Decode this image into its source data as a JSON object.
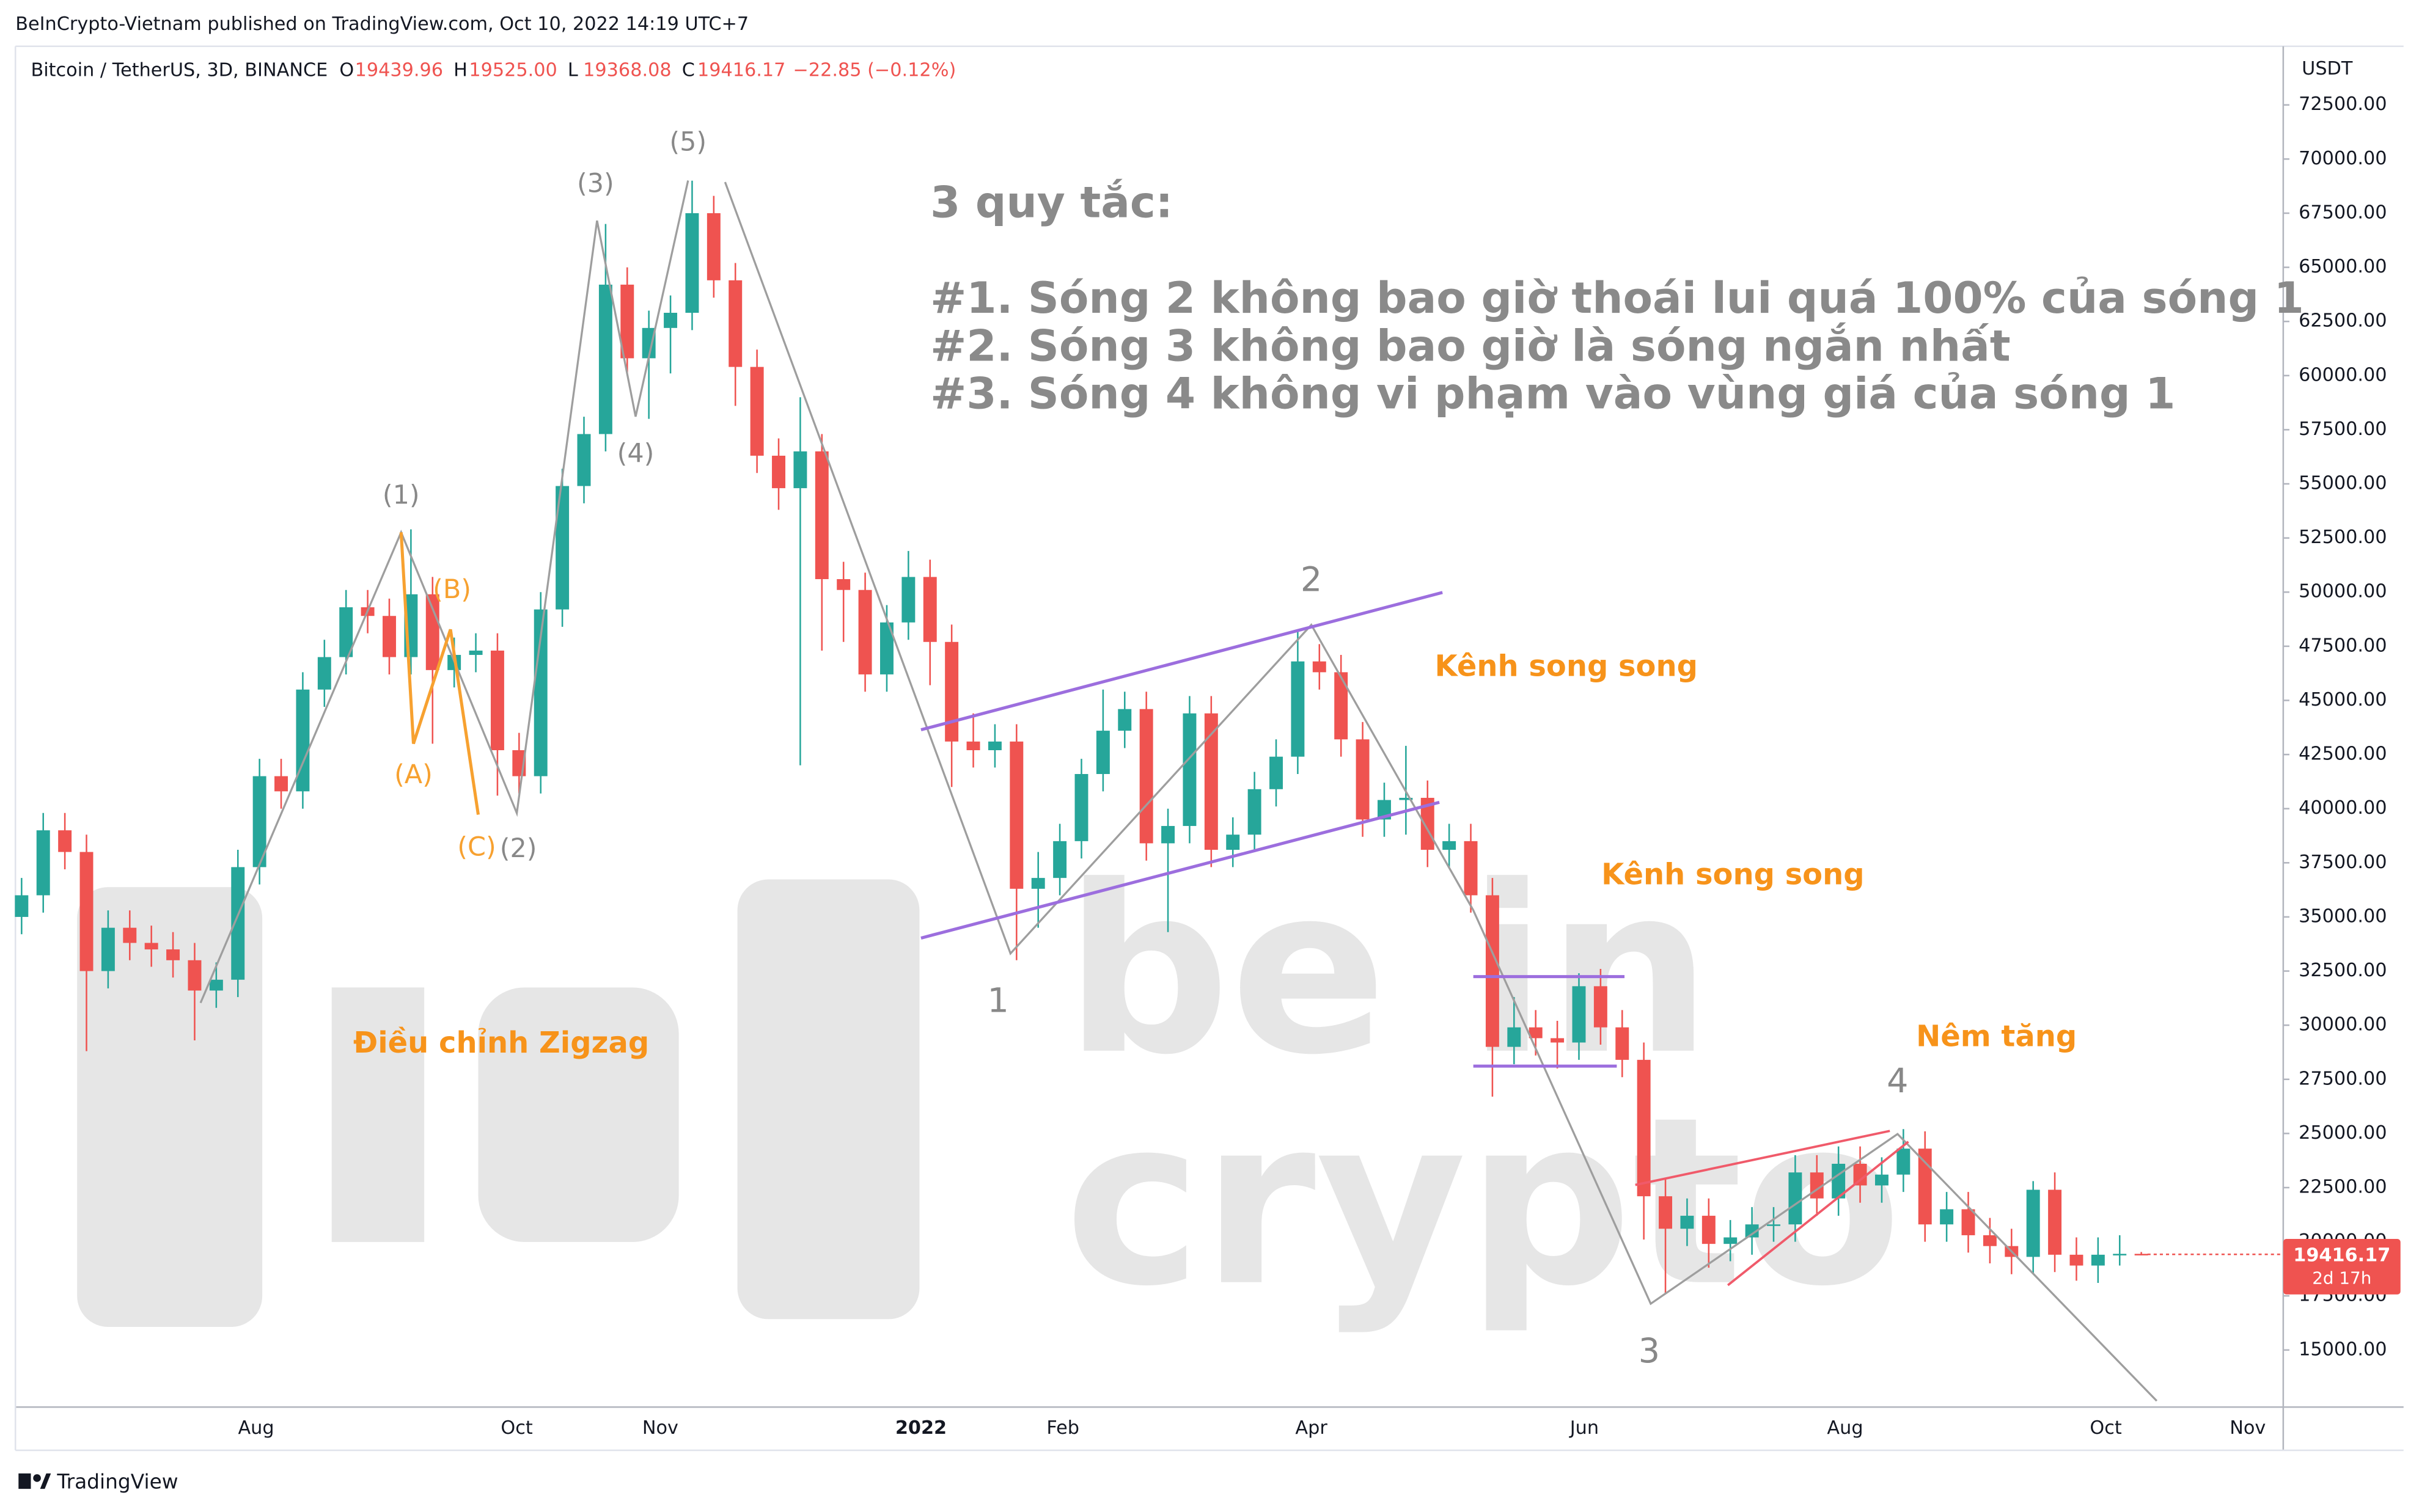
{
  "header": {
    "published": "BeInCrypto-Vietnam published on TradingView.com, Oct 10, 2022 14:19 UTC+7",
    "symbol": "Bitcoin / TetherUS, 3D, BINANCE",
    "ohlc": [
      {
        "key": "O",
        "value": "19439.96"
      },
      {
        "key": "H",
        "value": "19525.00"
      },
      {
        "key": "L",
        "value": "19368.08"
      },
      {
        "key": "C",
        "value": "19416.17"
      }
    ],
    "change": "−22.85 (−0.12%)",
    "currency": "USDT",
    "countdown": "2d 17h",
    "footer": "TradingView"
  },
  "annotations": {
    "rules_title": "3 quy tắc:",
    "rules": [
      "#1. Sóng 2 không bao giờ thoái lui quá 100% của sóng 1",
      "#2. Sóng 3 không bao giờ là sóng ngắn nhất",
      "#3. Sóng 4 không vi phạm vào vùng giá của sóng 1"
    ],
    "channel_1": "Kênh song song",
    "channel_2": "Kênh song song",
    "wedge": "Nêm tăng",
    "zigzag": "Điều chỉnh Zigzag",
    "waves": [
      "(1)",
      "(2)",
      "(3)",
      "(4)",
      "(5)",
      "(A)",
      "(B)",
      "(C)",
      "1",
      "2",
      "3",
      "4"
    ],
    "watermark": [
      "be in",
      "crypto"
    ]
  },
  "chart_data": {
    "type": "candlestick",
    "up_color": "#26a69a",
    "down_color": "#ef5350",
    "xticks": [
      "Aug",
      "Oct",
      "Nov",
      "2022",
      "Feb",
      "Apr",
      "Jun",
      "Aug",
      "Oct",
      "Nov"
    ],
    "open": [
      35000,
      36000,
      39000,
      38000,
      32500,
      34500,
      33800,
      33500,
      33000,
      31600,
      32100,
      37300,
      41500,
      40800,
      45500,
      47000,
      49300,
      48900,
      47000,
      49900,
      46400,
      47100,
      47300,
      42700,
      41500,
      49200,
      54900,
      57300,
      64200,
      60800,
      62200,
      62900,
      67500,
      64400,
      60400,
      56300,
      54800,
      56500,
      50600,
      50100,
      46200,
      48600,
      50700,
      47700,
      43100,
      42700,
      43100,
      36300,
      36800,
      38500,
      41600,
      43600,
      44600,
      38400,
      39200,
      44400,
      38100,
      38800,
      40900,
      42400,
      46800,
      46300,
      43200,
      39500,
      40400,
      40500,
      38100,
      38500,
      36000,
      29000,
      29900,
      29400,
      29200,
      31800,
      29900,
      28400,
      22100,
      20600,
      21200,
      19900,
      20200,
      20800,
      20800,
      23200,
      22000,
      23600,
      22600,
      23100,
      24300,
      20800,
      21500,
      20300,
      19800,
      19300,
      22400,
      19400,
      18900,
      19400,
      19439.96
    ],
    "high": [
      36800,
      39800,
      39800,
      38800,
      35300,
      35300,
      34600,
      34300,
      33800,
      32900,
      38100,
      42300,
      42300,
      46300,
      47800,
      50100,
      50100,
      49700,
      52900,
      50700,
      47900,
      48100,
      48100,
      43500,
      50000,
      55700,
      58100,
      67000,
      65000,
      63000,
      63700,
      69000,
      68300,
      65200,
      61200,
      57100,
      59000,
      57300,
      51400,
      50900,
      49400,
      51900,
      51500,
      48500,
      44400,
      43900,
      43900,
      38000,
      39300,
      42300,
      45500,
      45400,
      45400,
      40000,
      45200,
      45200,
      39600,
      41700,
      43200,
      48200,
      47600,
      47100,
      44000,
      41200,
      42900,
      41300,
      39300,
      39300,
      36800,
      31300,
      30700,
      30200,
      32400,
      32600,
      30700,
      29200,
      22900,
      22000,
      22000,
      21000,
      21600,
      21600,
      24000,
      24000,
      24400,
      24400,
      23900,
      25200,
      25100,
      22300,
      22300,
      21100,
      20600,
      22800,
      23200,
      20200,
      20200,
      20300,
      19525
    ],
    "low": [
      34200,
      35200,
      37200,
      28800,
      31700,
      33000,
      32700,
      32200,
      29300,
      30800,
      31300,
      36500,
      40000,
      40000,
      44700,
      46200,
      48100,
      46200,
      46200,
      43000,
      45600,
      46300,
      40600,
      40700,
      40700,
      48400,
      54100,
      56500,
      60000,
      58000,
      60100,
      62100,
      63600,
      58600,
      55500,
      53800,
      42000,
      47300,
      47700,
      45400,
      45400,
      47800,
      45700,
      41000,
      41900,
      41900,
      33000,
      34500,
      36000,
      37700,
      40800,
      42800,
      37600,
      34300,
      38400,
      37300,
      37300,
      38000,
      40100,
      41600,
      45500,
      42400,
      38700,
      38700,
      38800,
      37300,
      37300,
      35200,
      26700,
      28200,
      28600,
      28000,
      28400,
      29100,
      27600,
      20100,
      17600,
      19800,
      18800,
      19100,
      19400,
      20000,
      20000,
      21200,
      21200,
      21800,
      21800,
      22300,
      20000,
      20000,
      19500,
      19000,
      18500,
      18500,
      18600,
      18200,
      18100,
      18900,
      19368.08
    ],
    "close": [
      36000,
      39000,
      38000,
      32500,
      34500,
      33800,
      33500,
      33000,
      31600,
      32100,
      37300,
      41500,
      40800,
      45500,
      47000,
      49300,
      48900,
      47000,
      49900,
      46400,
      47100,
      47300,
      42700,
      41500,
      49200,
      54900,
      57300,
      64200,
      60800,
      62200,
      62900,
      67500,
      64400,
      60400,
      56300,
      54800,
      56500,
      50600,
      50100,
      46200,
      48600,
      50700,
      47700,
      43100,
      42700,
      43100,
      36300,
      36800,
      38500,
      41600,
      43600,
      44600,
      38400,
      39200,
      44400,
      38100,
      38800,
      40900,
      42400,
      46800,
      46300,
      43200,
      39500,
      40400,
      40500,
      38100,
      38500,
      36000,
      29000,
      29900,
      29400,
      29200,
      31800,
      29900,
      28400,
      22100,
      20600,
      21200,
      19900,
      20200,
      20800,
      20800,
      23200,
      22000,
      23600,
      22600,
      23100,
      24300,
      20800,
      21500,
      20300,
      19800,
      19300,
      22400,
      19400,
      18900,
      19400,
      19440,
      19416.17
    ],
    "ylim": [
      15000,
      72500
    ],
    "yticks": [
      {
        "value": 15000,
        "label": "15000.00"
      },
      {
        "value": 17500,
        "label": "17500.00"
      },
      {
        "value": 20000,
        "label": "20000.00"
      },
      {
        "value": 22500,
        "label": "22500.00"
      },
      {
        "value": 25000,
        "label": "25000.00"
      },
      {
        "value": 27500,
        "label": "27500.00"
      },
      {
        "value": 30000,
        "label": "30000.00"
      },
      {
        "value": 32500,
        "label": "32500.00"
      },
      {
        "value": 35000,
        "label": "35000.00"
      },
      {
        "value": 37500,
        "label": "37500.00"
      },
      {
        "value": 40000,
        "label": "40000.00"
      },
      {
        "value": 42500,
        "label": "42500.00"
      },
      {
        "value": 45000,
        "label": "45000.00"
      },
      {
        "value": 47500,
        "label": "47500.00"
      },
      {
        "value": 50000,
        "label": "50000.00"
      },
      {
        "value": 52500,
        "label": "52500.00"
      },
      {
        "value": 55000,
        "label": "55000.00"
      },
      {
        "value": 57500,
        "label": "57500.00"
      },
      {
        "value": 60000,
        "label": "60000.00"
      },
      {
        "value": 62500,
        "label": "62500.00"
      },
      {
        "value": 65000,
        "label": "65000.00"
      },
      {
        "value": 67500,
        "label": "67500.00"
      },
      {
        "value": 70000,
        "label": "70000.00"
      },
      {
        "value": 72500,
        "label": "72500.00"
      }
    ]
  }
}
